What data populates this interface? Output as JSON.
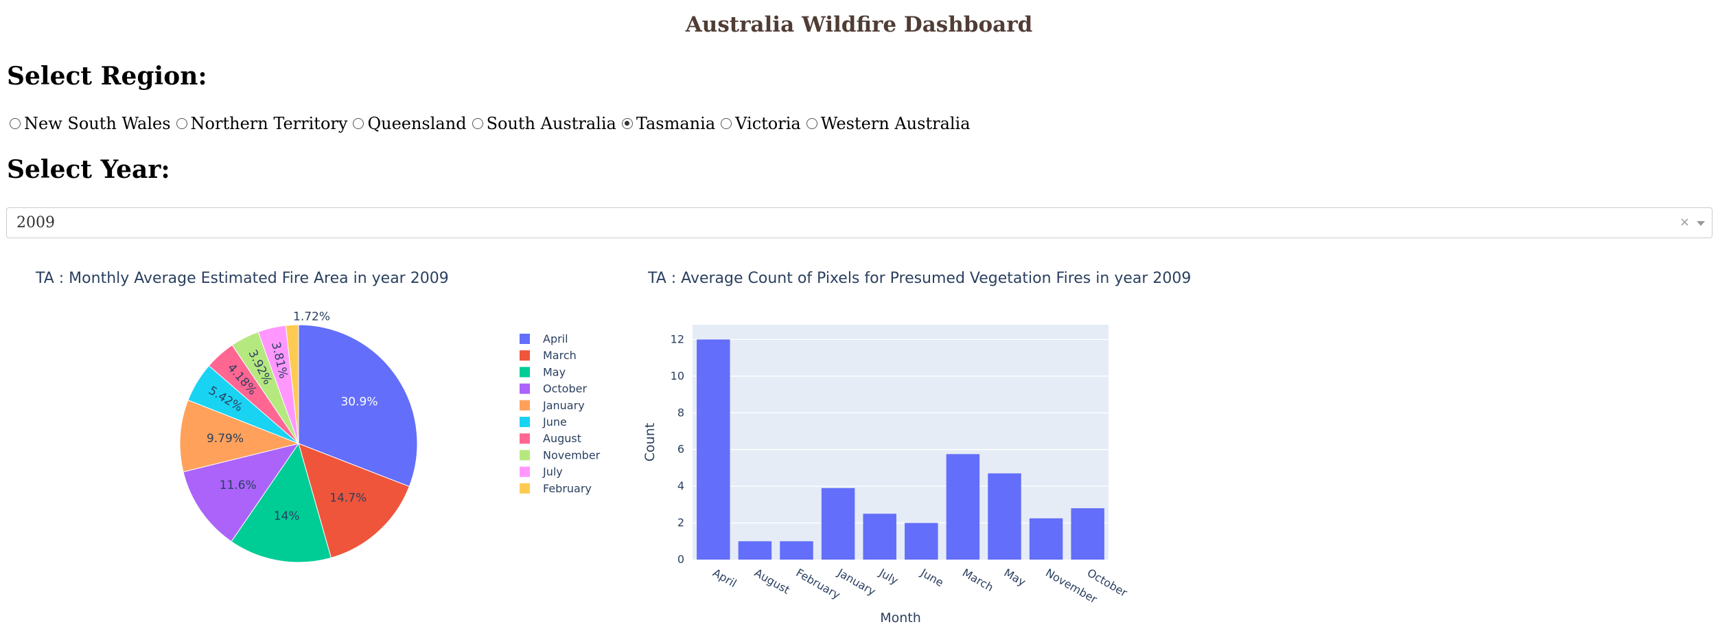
{
  "header": {
    "title": "Australia Wildfire Dashboard"
  },
  "region_select": {
    "heading": "Select Region:",
    "options": [
      {
        "label": "New South Wales",
        "checked": false
      },
      {
        "label": "Northern Territory",
        "checked": false
      },
      {
        "label": "Queensland",
        "checked": false
      },
      {
        "label": "South Australia",
        "checked": false
      },
      {
        "label": "Tasmania",
        "checked": true
      },
      {
        "label": "Victoria",
        "checked": false
      },
      {
        "label": "Western Australia",
        "checked": false
      }
    ]
  },
  "year_select": {
    "heading": "Select Year:",
    "value": "2009",
    "clear_icon": "×"
  },
  "chart_data": [
    {
      "type": "pie",
      "title": "TA : Monthly Average Estimated Fire Area in year 2009",
      "legend_position": "right",
      "labels": [
        "April",
        "March",
        "May",
        "October",
        "January",
        "June",
        "August",
        "November",
        "July",
        "February"
      ],
      "values": [
        30.9,
        14.7,
        14,
        11.6,
        9.79,
        5.42,
        4.18,
        3.92,
        3.81,
        1.72
      ],
      "value_labels": [
        "30.9%",
        "14.7%",
        "14%",
        "11.6%",
        "9.79%",
        "5.42%",
        "4.18%",
        "3.92%",
        "3.81%",
        "1.72%"
      ],
      "colors": [
        "#636efa",
        "#EF553B",
        "#00cc96",
        "#ab63fa",
        "#FFA15A",
        "#19d3f3",
        "#FF6692",
        "#B6E880",
        "#FF97FF",
        "#FECB52"
      ]
    },
    {
      "type": "bar",
      "title": "TA : Average Count of Pixels for Presumed Vegetation Fires in year 2009",
      "categories": [
        "April",
        "August",
        "February",
        "January",
        "July",
        "June",
        "March",
        "May",
        "November",
        "October"
      ],
      "values": [
        12,
        1,
        1,
        3.9,
        2.5,
        2,
        5.75,
        4.7,
        2.25,
        2.8
      ],
      "xlabel": "Month",
      "ylabel": "Count",
      "ylim": [
        0,
        12.8
      ],
      "yticks": [
        0,
        2,
        4,
        6,
        8,
        10,
        12
      ],
      "grid": true,
      "bar_color": "#636efa",
      "plot_background": "#e5ecf6"
    }
  ]
}
